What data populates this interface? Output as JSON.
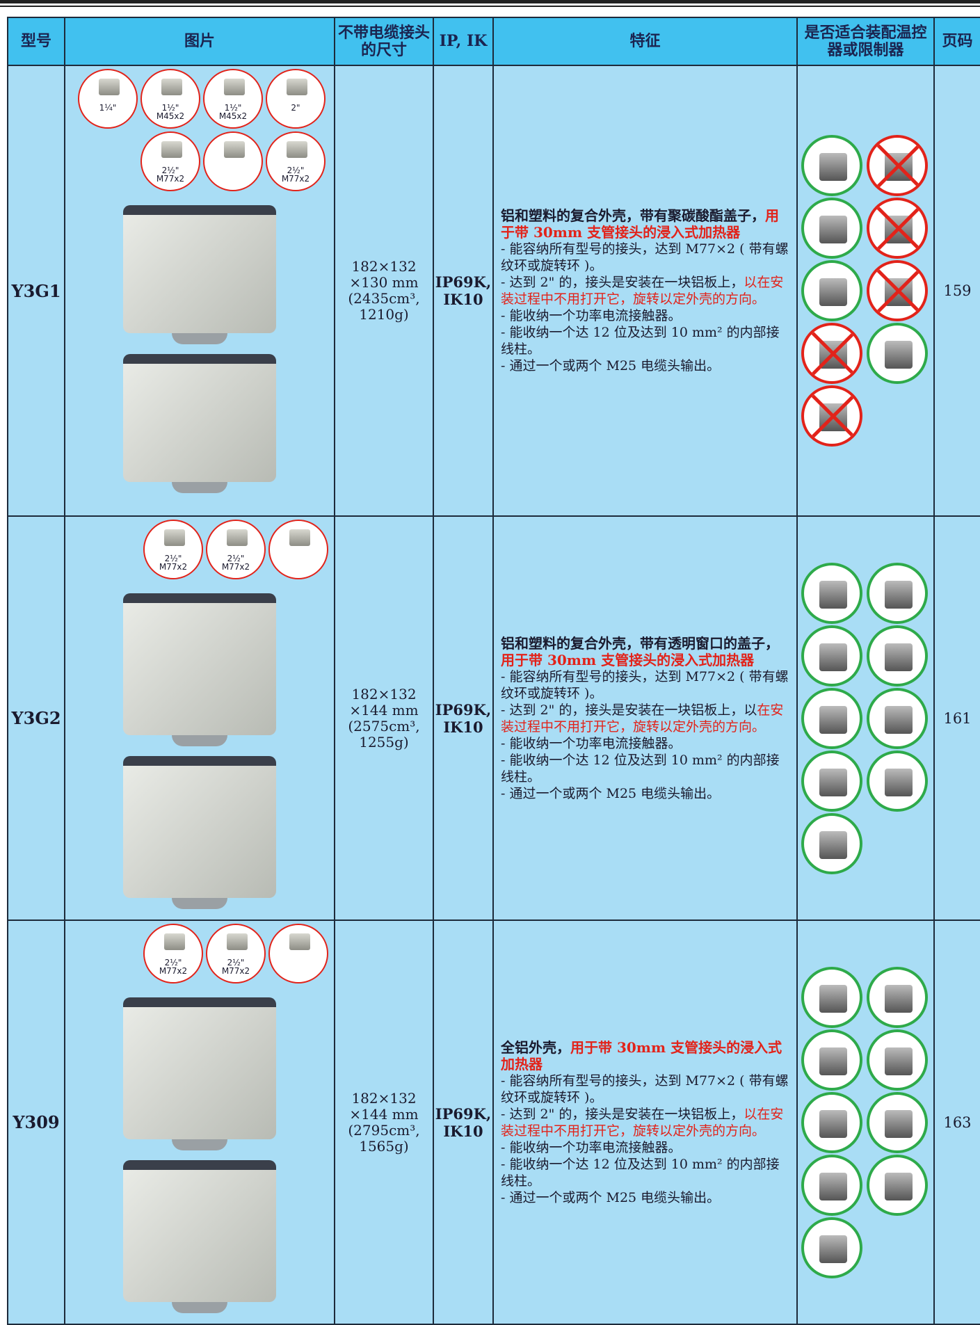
{
  "table": {
    "headers": [
      "型号",
      "图片",
      "不带电缆接头的尺寸",
      "IP, IK",
      "特征",
      "是否适合装配温控器或限制器",
      "页码"
    ],
    "rows": [
      {
        "model": "Y3G1",
        "fittings": [
          [
            "1¼\""
          ],
          [
            "1½\"",
            "M45x2"
          ],
          [
            "1½\"",
            "M45x2"
          ],
          [
            "2\""
          ],
          [
            "2½\"",
            "M77x2"
          ],
          [],
          [
            "2½\"",
            "M77x2"
          ]
        ],
        "size": [
          "182×132",
          "×130 mm",
          "(2435cm³,",
          "1210g)"
        ],
        "ip": [
          "IP69K,",
          "IK10"
        ],
        "features": [
          [
            {
              "text": "铝和塑料的复合外壳，带有聚碳酸酯盖子，"
            },
            {
              "text": "用于带 30mm 支管接头的浸入式加热器",
              "color": "#e2231a"
            }
          ],
          [
            {
              "text": "- 能容纳所有型号的接头，达到 M77×2 ( 带有螺纹环或旋转环 )。"
            }
          ],
          [
            {
              "text": "- 达到 2\" 的，接头是安装在一块铝板上，"
            },
            {
              "text": "以在安装过程中不用打开它，旋转以定外壳的方向。",
              "color": "#e2231a"
            }
          ],
          [
            {
              "text": "- 能收纳一个功率电流接触器。"
            }
          ],
          [
            {
              "text": "- 能收纳一个达 12 位及达到 10 mm² 的内部接线柱。"
            }
          ],
          [
            {
              "text": "- 通过一个或两个 M25 电缆头输出。"
            }
          ]
        ],
        "controllers": [
          true,
          false,
          true,
          false,
          true,
          false,
          false,
          true,
          false
        ],
        "page": 159
      },
      {
        "model": "Y3G2",
        "fittings": [
          [
            "2½\"",
            "M77x2"
          ],
          [
            "2½\"",
            "M77x2"
          ],
          []
        ],
        "size": [
          "182×132",
          "×144 mm",
          "(2575cm³,",
          "1255g)"
        ],
        "ip": [
          "IP69K,",
          "IK10"
        ],
        "features": [
          [
            {
              "text": "铝和塑料的复合外壳，带有透明窗口的盖子，"
            },
            {
              "text": "用于带 30mm 支管接头的浸入式加热器",
              "color": "#e2231a"
            }
          ],
          [
            {
              "text": "- 能容纳所有型号的接头，达到 M77×2 ( 带有螺纹环或旋转环 )。"
            }
          ],
          [
            {
              "text": "- 达到 2\" 的，接头是安装在一块铝板上，以"
            },
            {
              "text": "在安装过程中不用打开它，旋转以定外壳的方向。",
              "color": "#e2231a"
            }
          ],
          [
            {
              "text": "- 能收纳一个功率电流接触器。"
            }
          ],
          [
            {
              "text": "- 能收纳一个达 12 位及达到 10 mm² 的内部接线柱。"
            }
          ],
          [
            {
              "text": "- 通过一个或两个 M25 电缆头输出。"
            }
          ]
        ],
        "controllers": [
          true,
          true,
          true,
          true,
          true,
          true,
          true,
          true,
          true
        ],
        "page": 161
      },
      {
        "model": "Y309",
        "fittings": [
          [
            "2½\"",
            "M77x2"
          ],
          [
            "2½\"",
            "M77x2"
          ],
          []
        ],
        "size": [
          "182×132",
          "×144 mm",
          "(2795cm³,",
          "1565g)"
        ],
        "ip": [
          "IP69K,",
          "IK10"
        ],
        "features": [
          [
            {
              "text": "全铝外壳，"
            },
            {
              "text": "用于带 30mm 支管接头的浸入式加热器",
              "color": "#e2231a"
            }
          ],
          [
            {
              "text": "- 能容纳所有型号的接头，达到 M77×2 ( 带有螺纹环或旋转环 )。"
            }
          ],
          [
            {
              "text": "- 达到 2\" 的，接头是安装在一块铝板上，"
            },
            {
              "text": "以在安装过程中不用打开它，旋转以定外壳的方向。",
              "color": "#e2231a"
            }
          ],
          [
            {
              "text": "- 能收纳一个功率电流接触器。"
            }
          ],
          [
            {
              "text": "- 能收纳一个达 12 位及达到 10 mm² 的内部接线柱。"
            }
          ],
          [
            {
              "text": "- 通过一个或两个 M25 电缆头输出。"
            }
          ]
        ],
        "controllers": [
          true,
          true,
          true,
          true,
          true,
          true,
          true,
          true,
          true
        ],
        "page": 163
      }
    ]
  }
}
